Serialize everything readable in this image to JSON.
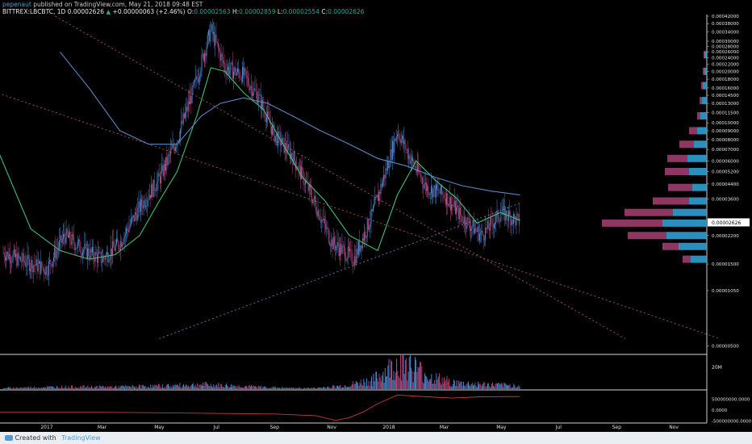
{
  "header": {
    "author": "pepenaut",
    "published_text": "published on TradingView.com, May 21, 2018 09:48 EST",
    "symbol": "BITTREX:LBCBTC, 1D",
    "last": "0.00002626",
    "change_arrow": "▲",
    "change": "+0.00000063 (+2.46%)",
    "o_label": "O:",
    "o_value": "0.00002563",
    "h_label": "H:",
    "h_value": "0.00002859",
    "l_label": "L:",
    "l_value": "0.00002554",
    "c_label": "C:",
    "c_value": "0.00002626"
  },
  "footer": {
    "created_with": "Created with",
    "brand": "TradingView"
  },
  "colors": {
    "background": "#000000",
    "candle_up": "#4f8fd8",
    "candle_down": "#b2457a",
    "ma_fast": "#3fbf76",
    "ma_slow": "#5b86c4",
    "trendline": "#c26060",
    "price_badge_bg": "#ffffff"
  },
  "chart_data": {
    "type": "line",
    "title": "BITTREX:LBCBTC, 1D",
    "y_scale": "log",
    "ylim": [
      4.5e-06,
      0.00042
    ],
    "price_ticks": [
      "0.00042000",
      "0.00038000",
      "0.00034000",
      "0.00030000",
      "0.00028000",
      "0.00026000",
      "0.00024000",
      "0.00022000",
      "0.00020000",
      "0.00018000",
      "0.00016000",
      "0.00014500",
      "0.00013000",
      "0.00011500",
      "0.00010000",
      "0.00009000",
      "0.00008000",
      "0.00007000",
      "0.00006000",
      "0.00005200",
      "0.00004400",
      "0.00003600",
      "0.00002200",
      "0.00001500",
      "0.00001050",
      "0.00000500"
    ],
    "current_price_label": "0.00002626",
    "volume_ticks": [
      "20M"
    ],
    "indicator_ticks": [
      "500000000.0000",
      "0.0000",
      "-500000000.0000"
    ],
    "x_ticks": [
      "2017",
      "Mar",
      "May",
      "Jul",
      "Sep",
      "Nov",
      "2018",
      "Mar",
      "May",
      "Jul",
      "Sep",
      "Nov"
    ],
    "price_path": {
      "dates": [
        "2016-11-01",
        "2016-12-01",
        "2017-01-01",
        "2017-01-20",
        "2017-02-10",
        "2017-03-01",
        "2017-03-20",
        "2017-04-10",
        "2017-05-01",
        "2017-05-20",
        "2017-06-10",
        "2017-06-25",
        "2017-07-10",
        "2017-07-30",
        "2017-08-15",
        "2017-09-01",
        "2017-09-20",
        "2017-10-10",
        "2017-11-01",
        "2017-11-25",
        "2017-12-15",
        "2018-01-01",
        "2018-01-10",
        "2018-01-25",
        "2018-02-10",
        "2018-03-01",
        "2018-03-20",
        "2018-04-10",
        "2018-05-01",
        "2018-05-21"
      ],
      "close": [
        1.9e-05,
        1.6e-05,
        1.4e-05,
        2.2e-05,
        1.8e-05,
        1.6e-05,
        2e-05,
        3.2e-05,
        4.7e-05,
        8e-05,
        0.00018,
        0.00035,
        0.00021,
        0.00019,
        0.00014,
        8.5e-05,
        6.4e-05,
        3.8e-05,
        2e-05,
        1.6e-05,
        3e-05,
        6e-05,
        9e-05,
        6e-05,
        4.2e-05,
        3.8e-05,
        2.8e-05,
        2.2e-05,
        3e-05,
        2.626e-05
      ]
    },
    "series": [
      {
        "name": "MA fast",
        "color": "#3fbf76",
        "dates": [
          "2016-11-01",
          "2016-12-15",
          "2017-01-15",
          "2017-02-15",
          "2017-03-15",
          "2017-04-10",
          "2017-05-01",
          "2017-05-20",
          "2017-06-10",
          "2017-06-25",
          "2017-07-10",
          "2017-07-30",
          "2017-08-20",
          "2017-09-10",
          "2017-10-01",
          "2017-10-25",
          "2017-11-20",
          "2017-12-20",
          "2018-01-10",
          "2018-01-30",
          "2018-02-20",
          "2018-03-15",
          "2018-04-05",
          "2018-04-30",
          "2018-05-21"
        ],
        "values": [
          9e-05,
          2.4e-05,
          1.8e-05,
          1.6e-05,
          1.7e-05,
          2.2e-05,
          3.5e-05,
          5.2e-05,
          0.00011,
          0.00021,
          0.0002,
          0.00015,
          0.00012,
          7.5e-05,
          4.8e-05,
          3.5e-05,
          2.2e-05,
          1.8e-05,
          3.8e-05,
          6e-05,
          4.6e-05,
          3.6e-05,
          2.6e-05,
          3e-05,
          2.7e-05
        ]
      },
      {
        "name": "MA slow",
        "color": "#5b86c4",
        "dates": [
          "2017-01-15",
          "2017-02-15",
          "2017-03-20",
          "2017-04-20",
          "2017-05-20",
          "2017-06-15",
          "2017-07-05",
          "2017-07-30",
          "2017-08-25",
          "2017-09-20",
          "2017-10-20",
          "2017-11-20",
          "2017-12-20",
          "2018-01-20",
          "2018-02-20",
          "2018-03-20",
          "2018-04-20",
          "2018-05-21"
        ],
        "values": [
          0.00026,
          0.00016,
          9e-05,
          7.5e-05,
          7.5e-05,
          0.00011,
          0.00013,
          0.00014,
          0.00013,
          0.00011,
          9e-05,
          7.5e-05,
          6.2e-05,
          5.6e-05,
          4.8e-05,
          4.3e-05,
          4e-05,
          3.8e-05
        ]
      }
    ],
    "trendlines": [
      {
        "dates": [
          "2016-10-25",
          "2018-12-20"
        ],
        "values": [
          0.00016,
          5.5e-06
        ]
      },
      {
        "dates": [
          "2017-01-10",
          "2018-09-10"
        ],
        "values": [
          0.00042,
          5.5e-06
        ]
      },
      {
        "dates": [
          "2017-05-01",
          "2018-05-21"
        ],
        "values": [
          5.5e-06,
          3.4e-05
        ]
      }
    ],
    "volume_profile": [
      {
        "price": 3.5e-05,
        "buy": 22,
        "sell": 45
      },
      {
        "price": 3e-05,
        "buy": 42,
        "sell": 60
      },
      {
        "price": 2.6e-05,
        "buy": 55,
        "sell": 75
      },
      {
        "price": 2.2e-05,
        "buy": 50,
        "sell": 48
      },
      {
        "price": 1.9e-05,
        "buy": 35,
        "sell": 20
      },
      {
        "price": 1.6e-05,
        "buy": 20,
        "sell": 10
      },
      {
        "price": 4.2e-05,
        "buy": 18,
        "sell": 30
      },
      {
        "price": 5.2e-05,
        "buy": 22,
        "sell": 30
      },
      {
        "price": 6.2e-05,
        "buy": 24,
        "sell": 25
      },
      {
        "price": 7.5e-05,
        "buy": 16,
        "sell": 18
      },
      {
        "price": 9e-05,
        "buy": 12,
        "sell": 10
      },
      {
        "price": 0.00011,
        "buy": 8,
        "sell": 4
      },
      {
        "price": 0.000135,
        "buy": 6,
        "sell": 3
      },
      {
        "price": 0.000165,
        "buy": 5,
        "sell": 2
      },
      {
        "price": 0.0002,
        "buy": 3,
        "sell": 2
      },
      {
        "price": 0.00025,
        "buy": 3,
        "sell": 1
      }
    ],
    "volume": {
      "dates": [
        "2016-11",
        "2017-01",
        "2017-03",
        "2017-05",
        "2017-06",
        "2017-07",
        "2017-08",
        "2017-09",
        "2017-10",
        "2017-11",
        "2017-12",
        "2018-01",
        "2018-02",
        "2018-03",
        "2018-04",
        "2018-05"
      ],
      "values": [
        1,
        2,
        2,
        3,
        4,
        3,
        2,
        1,
        1,
        3,
        8,
        25,
        10,
        5,
        4,
        3
      ]
    },
    "indicator": {
      "dates": [
        "2016-11-01",
        "2017-03-01",
        "2017-06-01",
        "2017-09-01",
        "2017-10-15",
        "2017-11-05",
        "2017-11-20",
        "2017-12-05",
        "2017-12-20",
        "2018-01-10",
        "2018-02-10",
        "2018-03-10",
        "2018-04-10",
        "2018-05-21"
      ],
      "values": [
        -100000000,
        -100000000,
        -140000000,
        -180000000,
        -260000000,
        -480000000,
        -350000000,
        -80000000,
        300000000,
        700000000,
        620000000,
        560000000,
        620000000,
        630000000
      ]
    }
  }
}
